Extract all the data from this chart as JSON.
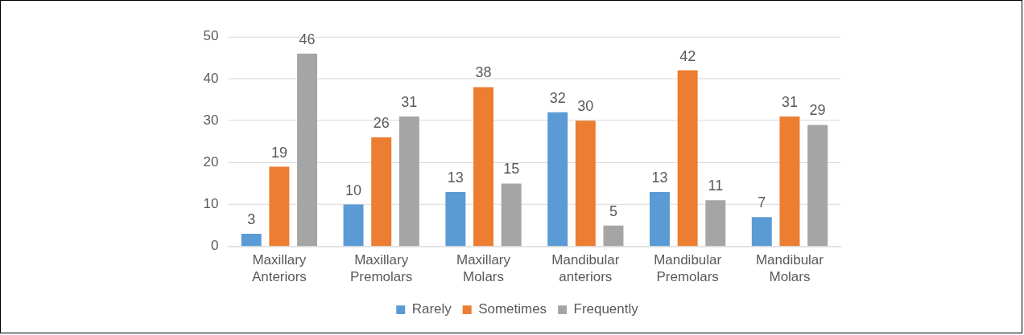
{
  "chart_data": {
    "type": "bar",
    "categories": [
      "Maxillary Anteriors",
      "Maxillary Premolars",
      "Maxillary Molars",
      "Mandibular anteriors",
      "Mandibular Premolars",
      "Mandibular Molars"
    ],
    "series": [
      {
        "name": "Rarely",
        "color": "#5b9bd5",
        "values": [
          3,
          10,
          13,
          32,
          13,
          7
        ]
      },
      {
        "name": "Sometimes",
        "color": "#ed7d31",
        "values": [
          19,
          26,
          38,
          30,
          42,
          31
        ]
      },
      {
        "name": "Frequently",
        "color": "#a5a5a5",
        "values": [
          46,
          31,
          15,
          5,
          11,
          29
        ]
      }
    ],
    "ylim": [
      0,
      50
    ],
    "yticks": [
      0,
      10,
      20,
      30,
      40,
      50
    ],
    "grid": "y",
    "legend": "bottom",
    "data_labels": true
  }
}
